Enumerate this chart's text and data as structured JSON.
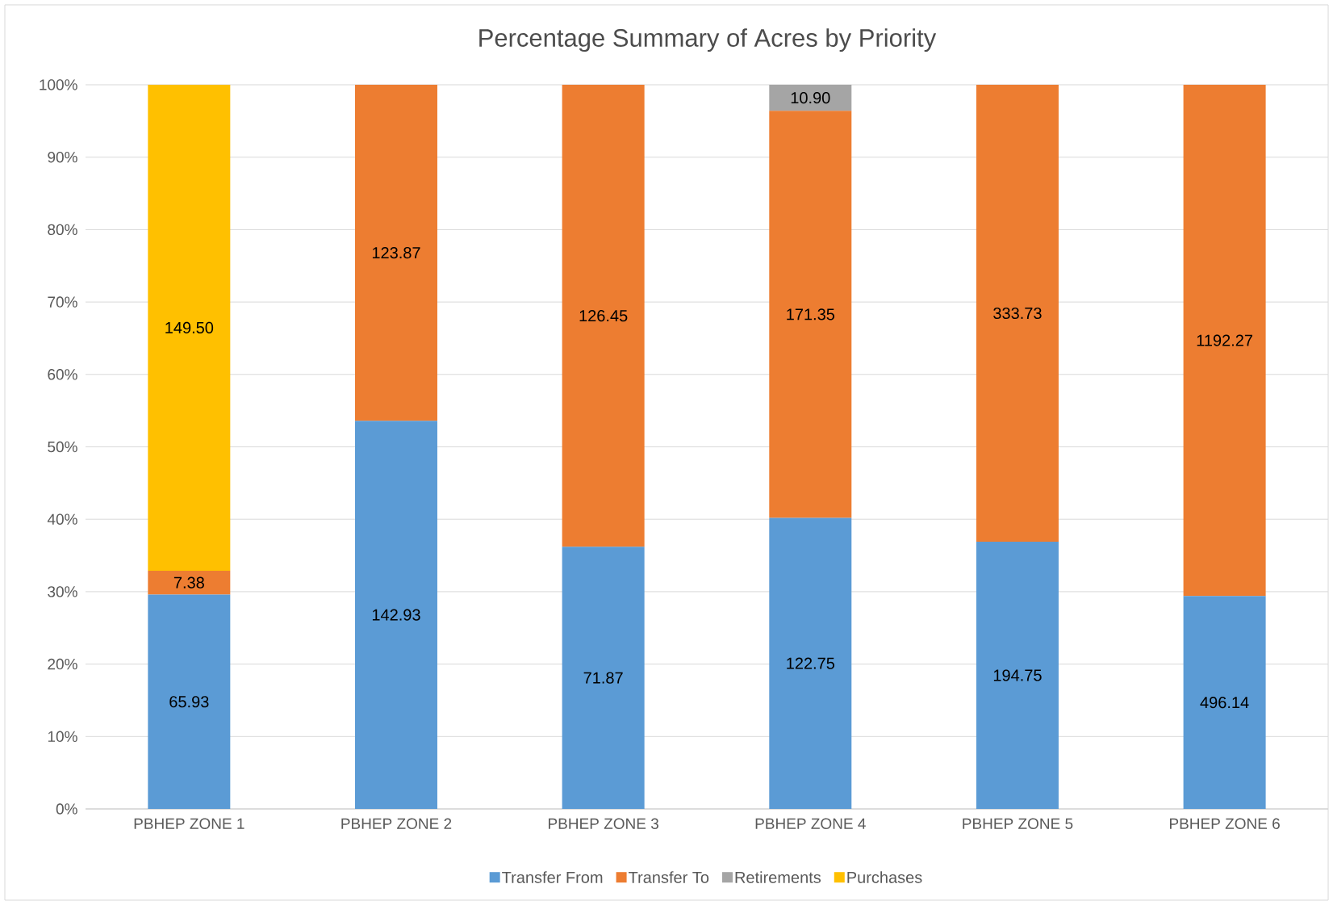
{
  "chart_data": {
    "type": "bar",
    "title": "Percentage Summary of Acres by Priority",
    "stacked": true,
    "categories": [
      "PBHEP ZONE 1",
      "PBHEP ZONE 2",
      "PBHEP ZONE 3",
      "PBHEP ZONE 4",
      "PBHEP ZONE 5",
      "PBHEP ZONE 6"
    ],
    "series": [
      {
        "name": "Transfer From",
        "color": "#5b9bd5",
        "values": [
          29.6,
          53.6,
          36.2,
          40.2,
          36.9,
          29.4
        ]
      },
      {
        "name": "Transfer To",
        "color": "#ed7d31",
        "values": [
          3.3,
          46.4,
          63.8,
          56.2,
          63.1,
          70.6
        ]
      },
      {
        "name": "Retirements",
        "color": "#a5a5a5",
        "values": [
          null,
          null,
          null,
          3.6,
          null,
          null
        ]
      },
      {
        "name": "Purchases",
        "color": "#ffc000",
        "values": [
          67.1,
          null,
          null,
          null,
          null,
          null
        ]
      }
    ],
    "annotations": [
      "65.93",
      "142.93",
      "71.87",
      "122.75",
      "194.75",
      "496.14",
      "7.38",
      "123.87",
      "126.45",
      "171.35",
      "333.73",
      "1192.27",
      "10.90",
      "149.50"
    ],
    "ylim": [
      0,
      100
    ],
    "yticks": [
      {
        "value": 0,
        "label": "0%"
      },
      {
        "value": 10,
        "label": "10%"
      },
      {
        "value": 20,
        "label": "20%"
      },
      {
        "value": 30,
        "label": "30%"
      },
      {
        "value": 40,
        "label": "40%"
      },
      {
        "value": 50,
        "label": "50%"
      },
      {
        "value": 60,
        "label": "60%"
      },
      {
        "value": 70,
        "label": "70%"
      },
      {
        "value": 80,
        "label": "80%"
      },
      {
        "value": 90,
        "label": "90%"
      },
      {
        "value": 100,
        "label": "100%"
      }
    ],
    "grid": "y",
    "legend": "bottom"
  }
}
